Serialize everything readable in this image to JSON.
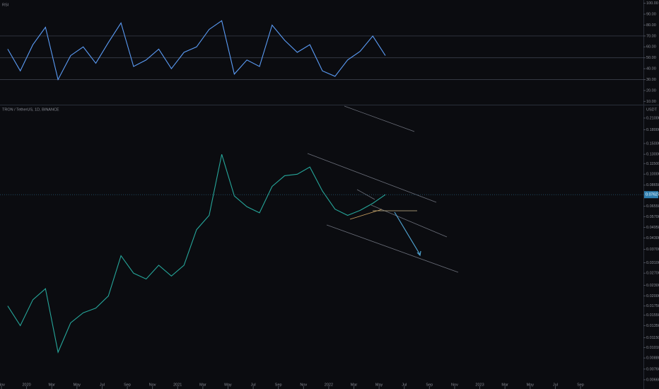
{
  "chart_data": [
    {
      "type": "line",
      "title": "RSI",
      "color": "#5b9cf6",
      "x": [
        "2019-11",
        "2019-12",
        "2020-01",
        "2020-02",
        "2020-03",
        "2020-04",
        "2020-05",
        "2020-06",
        "2020-07",
        "2020-08",
        "2020-09",
        "2020-10",
        "2020-11",
        "2020-12",
        "2021-01",
        "2021-02",
        "2021-03",
        "2021-04",
        "2021-05",
        "2021-06",
        "2021-07",
        "2021-08",
        "2021-09",
        "2021-10",
        "2021-11",
        "2021-12",
        "2022-01",
        "2022-02",
        "2022-03",
        "2022-04",
        "2022-05"
      ],
      "values": [
        58,
        38,
        62,
        78,
        30,
        52,
        60,
        45,
        64,
        82,
        42,
        48,
        58,
        40,
        55,
        60,
        76,
        84,
        35,
        48,
        42,
        80,
        66,
        55,
        62,
        38,
        33,
        48,
        56,
        70,
        52
      ],
      "ylim": [
        7,
        103
      ],
      "yticks": [
        {
          "value": 100,
          "label": "100.00"
        },
        {
          "value": 90,
          "label": "90.00"
        },
        {
          "value": 80,
          "label": "80.00"
        },
        {
          "value": 70,
          "label": "70.00"
        },
        {
          "value": 60,
          "label": "60.00"
        },
        {
          "value": 50,
          "label": "50.00"
        },
        {
          "value": 40,
          "label": "40.00"
        },
        {
          "value": 30,
          "label": "30.00"
        },
        {
          "value": 20,
          "label": "20.00"
        },
        {
          "value": 10,
          "label": "10.00"
        }
      ],
      "bands": [
        70,
        50,
        30
      ],
      "xlim": [
        "2019-11",
        "2024-02"
      ]
    },
    {
      "type": "line",
      "title": "TRON / TetherUS, 1D, BINANCE",
      "axis_label": "USDT",
      "color": "#26a69a",
      "log_scale": true,
      "x": [
        "2019-11",
        "2019-12",
        "2020-01",
        "2020-02",
        "2020-03",
        "2020-04",
        "2020-05",
        "2020-06",
        "2020-07",
        "2020-08",
        "2020-09",
        "2020-10",
        "2020-11",
        "2020-12",
        "2021-01",
        "2021-02",
        "2021-03",
        "2021-04",
        "2021-05",
        "2021-06",
        "2021-07",
        "2021-08",
        "2021-09",
        "2021-10",
        "2021-11",
        "2021-12",
        "2022-01",
        "2022-02",
        "2022-03",
        "2022-04",
        "2022-05"
      ],
      "values": [
        0.0175,
        0.0135,
        0.019,
        0.022,
        0.0095,
        0.014,
        0.016,
        0.017,
        0.02,
        0.034,
        0.027,
        0.025,
        0.03,
        0.026,
        0.03,
        0.048,
        0.058,
        0.13,
        0.075,
        0.065,
        0.06,
        0.085,
        0.098,
        0.1,
        0.11,
        0.08,
        0.063,
        0.058,
        0.062,
        0.068,
        0.07627
      ],
      "ylim": [
        0.00595,
        0.246
      ],
      "yticks": [
        {
          "value": 0.21,
          "label": "0.21000"
        },
        {
          "value": 0.18,
          "label": "0.18000"
        },
        {
          "value": 0.15,
          "label": "0.15000"
        },
        {
          "value": 0.13,
          "label": "0.13000"
        },
        {
          "value": 0.115,
          "label": "0.11500"
        },
        {
          "value": 0.1,
          "label": "0.10000"
        },
        {
          "value": 0.0865,
          "label": "0.08650"
        },
        {
          "value": 0.0655,
          "label": "0.06550"
        },
        {
          "value": 0.057,
          "label": "0.05700"
        },
        {
          "value": 0.0495,
          "label": "0.04950"
        },
        {
          "value": 0.043,
          "label": "0.04300"
        },
        {
          "value": 0.037,
          "label": "0.03700"
        },
        {
          "value": 0.031,
          "label": "0.03100"
        },
        {
          "value": 0.027,
          "label": "0.02700"
        },
        {
          "value": 0.023,
          "label": "0.02300"
        },
        {
          "value": 0.02,
          "label": "0.02000"
        },
        {
          "value": 0.0175,
          "label": "0.01750"
        },
        {
          "value": 0.0155,
          "label": "0.01550"
        },
        {
          "value": 0.0135,
          "label": "0.01350"
        },
        {
          "value": 0.0115,
          "label": "0.01150"
        },
        {
          "value": 0.0101,
          "label": "0.01010"
        },
        {
          "value": 0.0088,
          "label": "0.00880"
        },
        {
          "value": 0.0076,
          "label": "0.00760"
        },
        {
          "value": 0.0066,
          "label": "0.00660"
        }
      ],
      "last_price": {
        "value": 0.07627,
        "label": "0.07627"
      },
      "xlim": [
        "2019-11",
        "2024-02"
      ],
      "xticks": [
        {
          "value": "2019-11",
          "label": "Nov"
        },
        {
          "value": "2020-01",
          "label": "2020"
        },
        {
          "value": "2020-03",
          "label": "Mar"
        },
        {
          "value": "2020-05",
          "label": "May"
        },
        {
          "value": "2020-07",
          "label": "Jul"
        },
        {
          "value": "2020-09",
          "label": "Sep"
        },
        {
          "value": "2020-11",
          "label": "Nov"
        },
        {
          "value": "2021-01",
          "label": "2021"
        },
        {
          "value": "2021-03",
          "label": "Mar"
        },
        {
          "value": "2021-05",
          "label": "May"
        },
        {
          "value": "2021-07",
          "label": "Jul"
        },
        {
          "value": "2021-09",
          "label": "Sep"
        },
        {
          "value": "2021-11",
          "label": "Nov"
        },
        {
          "value": "2022-01",
          "label": "2022"
        },
        {
          "value": "2022-03",
          "label": "Mar"
        },
        {
          "value": "2022-05",
          "label": "May"
        },
        {
          "value": "2022-07",
          "label": "Jul"
        },
        {
          "value": "2022-09",
          "label": "Sep"
        },
        {
          "value": "2022-11",
          "label": "Nov"
        },
        {
          "value": "2023-01",
          "label": "2023"
        },
        {
          "value": "2023-03",
          "label": "Mar"
        },
        {
          "value": "2023-05",
          "label": "May"
        },
        {
          "value": "2023-07",
          "label": "Jul"
        },
        {
          "value": "2023-09",
          "label": "Sep"
        }
      ]
    }
  ]
}
